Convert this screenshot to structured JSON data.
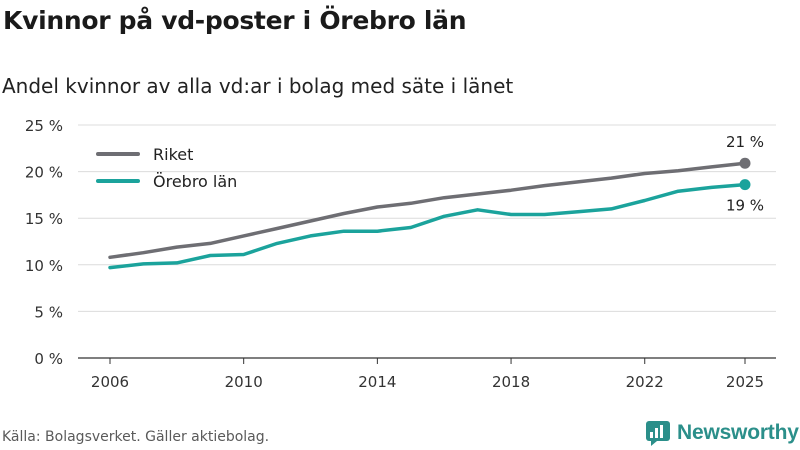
{
  "title": "Kvinnor på vd-poster i Örebro län",
  "subtitle": "Andel kvinnor av alla vd:ar i bolag med säte i länet",
  "source": "Källa: Bolagsverket. Gäller aktiebolag.",
  "brand": "Newsworthy",
  "colors": {
    "riket": "#6e6e73",
    "orebro": "#1ba39c",
    "grid": "#dcdcdc",
    "axis": "#333333",
    "brand": "#2b8f8a"
  },
  "chart_data": {
    "type": "line",
    "title": "Kvinnor på vd-poster i Örebro län",
    "subtitle": "Andel kvinnor av alla vd:ar i bolag med säte i länet",
    "xlabel": "",
    "ylabel": "",
    "x": [
      2006,
      2007,
      2008,
      2009,
      2010,
      2011,
      2012,
      2013,
      2014,
      2015,
      2016,
      2017,
      2018,
      2019,
      2020,
      2021,
      2022,
      2023,
      2024,
      2025
    ],
    "x_ticks": [
      "2006",
      "2010",
      "2014",
      "2018",
      "2022",
      "2025"
    ],
    "y_ticks": [
      "0 %",
      "5 %",
      "10 %",
      "15 %",
      "20 %",
      "25 %"
    ],
    "ylim": [
      0,
      25
    ],
    "grid": true,
    "legend_position": "top-left",
    "series": [
      {
        "name": "Riket",
        "color": "#6e6e73",
        "values": [
          10.8,
          11.3,
          11.9,
          12.3,
          13.1,
          13.9,
          14.7,
          15.5,
          16.2,
          16.6,
          17.2,
          17.6,
          18.0,
          18.5,
          18.9,
          19.3,
          19.8,
          20.1,
          20.5,
          20.9
        ],
        "end_label": "21 %"
      },
      {
        "name": "Örebro län",
        "color": "#1ba39c",
        "values": [
          9.7,
          10.1,
          10.2,
          11.0,
          11.1,
          12.3,
          13.1,
          13.6,
          13.6,
          14.0,
          15.2,
          15.9,
          15.4,
          15.4,
          15.7,
          16.0,
          16.9,
          17.9,
          18.3,
          18.6
        ],
        "end_label": "19 %"
      }
    ]
  }
}
